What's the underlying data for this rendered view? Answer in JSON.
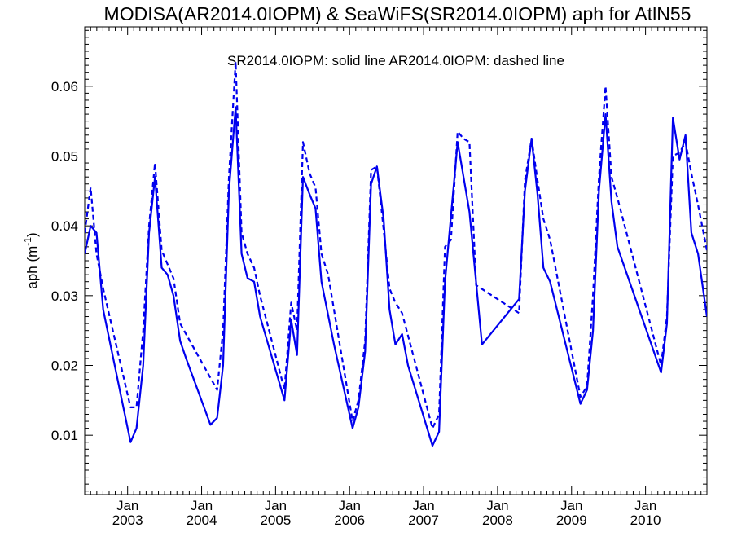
{
  "chart_data": {
    "type": "line",
    "title": "MODISA(AR2014.0IOPM) & SeaWiFS(SR2014.0IOPM)  aph for AtlN55",
    "annotation": "SR2014.0IOPM: solid line   AR2014.0IOPM: dashed line",
    "xlabel": "",
    "ylabel_prefix": "aph (m",
    "ylabel_superscript": "-1",
    "ylabel_suffix": ")",
    "xlim": [
      2002.42,
      2010.83
    ],
    "ylim": [
      0.0015,
      0.0685
    ],
    "grid": false,
    "line_color": "#0000ee",
    "y_ticks": [
      {
        "value": 0.01,
        "label": "0.01"
      },
      {
        "value": 0.02,
        "label": "0.02"
      },
      {
        "value": 0.03,
        "label": "0.03"
      },
      {
        "value": 0.04,
        "label": "0.04"
      },
      {
        "value": 0.05,
        "label": "0.05"
      },
      {
        "value": 0.06,
        "label": "0.06"
      }
    ],
    "x_ticks": [
      {
        "value": 2003,
        "month": "Jan",
        "year": "2003"
      },
      {
        "value": 2004,
        "month": "Jan",
        "year": "2004"
      },
      {
        "value": 2005,
        "month": "Jan",
        "year": "2005"
      },
      {
        "value": 2006,
        "month": "Jan",
        "year": "2006"
      },
      {
        "value": 2007,
        "month": "Jan",
        "year": "2007"
      },
      {
        "value": 2008,
        "month": "Jan",
        "year": "2008"
      },
      {
        "value": 2009,
        "month": "Jan",
        "year": "2009"
      },
      {
        "value": 2010,
        "month": "Jan",
        "year": "2010"
      }
    ],
    "series": [
      {
        "name": "SR2014.0IOPM",
        "style": "solid",
        "x": [
          2002.42,
          2002.5,
          2002.58,
          2002.67,
          2003.04,
          2003.12,
          2003.21,
          2003.29,
          2003.37,
          2003.46,
          2003.54,
          2003.62,
          2003.71,
          2003.79,
          2004.12,
          2004.21,
          2004.29,
          2004.37,
          2004.46,
          2004.54,
          2004.62,
          2004.71,
          2004.79,
          2005.12,
          2005.21,
          2005.29,
          2005.37,
          2005.46,
          2005.54,
          2005.62,
          2005.79,
          2006.04,
          2006.12,
          2006.21,
          2006.29,
          2006.37,
          2006.46,
          2006.54,
          2006.62,
          2006.71,
          2006.79,
          2007.12,
          2007.21,
          2007.29,
          2007.46,
          2007.62,
          2007.79,
          2008.29,
          2008.37,
          2008.46,
          2008.54,
          2008.62,
          2008.71,
          2009.12,
          2009.21,
          2009.29,
          2009.37,
          2009.46,
          2009.54,
          2009.62,
          2010.21,
          2010.29,
          2010.37,
          2010.46,
          2010.54,
          2010.62,
          2010.71,
          2010.83
        ],
        "y": [
          0.036,
          0.04,
          0.039,
          0.028,
          0.009,
          0.011,
          0.02,
          0.039,
          0.047,
          0.034,
          0.033,
          0.03,
          0.0235,
          0.021,
          0.0115,
          0.0125,
          0.02,
          0.045,
          0.057,
          0.036,
          0.0325,
          0.032,
          0.027,
          0.015,
          0.0265,
          0.0215,
          0.047,
          0.0445,
          0.0425,
          0.032,
          0.023,
          0.011,
          0.014,
          0.022,
          0.046,
          0.0485,
          0.041,
          0.028,
          0.023,
          0.0245,
          0.02,
          0.0085,
          0.0105,
          0.032,
          0.052,
          0.042,
          0.023,
          0.0295,
          0.045,
          0.0525,
          0.0445,
          0.034,
          0.032,
          0.0145,
          0.0165,
          0.025,
          0.045,
          0.056,
          0.0435,
          0.037,
          0.019,
          0.026,
          0.0555,
          0.0495,
          0.053,
          0.039,
          0.036,
          0.027
        ]
      },
      {
        "name": "AR2014.0IOPM",
        "style": "dashed",
        "x": [
          2002.42,
          2002.5,
          2002.58,
          2002.67,
          2003.04,
          2003.12,
          2003.21,
          2003.29,
          2003.37,
          2003.46,
          2003.54,
          2003.62,
          2003.71,
          2004.21,
          2004.29,
          2004.37,
          2004.46,
          2004.54,
          2004.62,
          2004.71,
          2004.79,
          2005.12,
          2005.21,
          2005.29,
          2005.37,
          2005.46,
          2005.54,
          2005.62,
          2005.71,
          2006.04,
          2006.12,
          2006.21,
          2006.29,
          2006.37,
          2006.46,
          2006.54,
          2006.62,
          2006.71,
          2007.12,
          2007.21,
          2007.29,
          2007.37,
          2007.46,
          2007.54,
          2007.62,
          2007.71,
          2008.29,
          2008.37,
          2008.46,
          2008.54,
          2008.62,
          2008.71,
          2009.12,
          2009.21,
          2009.29,
          2009.37,
          2009.46,
          2009.54,
          2009.62,
          2010.21,
          2010.29,
          2010.37,
          2010.46,
          2010.54,
          2010.62,
          2010.71,
          2010.83
        ],
        "y": [
          0.039,
          0.0455,
          0.036,
          0.031,
          0.014,
          0.014,
          0.025,
          0.04,
          0.049,
          0.0365,
          0.0345,
          0.0325,
          0.026,
          0.0165,
          0.025,
          0.047,
          0.0635,
          0.039,
          0.036,
          0.034,
          0.03,
          0.0165,
          0.029,
          0.025,
          0.052,
          0.0475,
          0.0455,
          0.036,
          0.033,
          0.012,
          0.015,
          0.0235,
          0.048,
          0.0485,
          0.0395,
          0.031,
          0.029,
          0.0275,
          0.011,
          0.013,
          0.037,
          0.038,
          0.0535,
          0.0525,
          0.052,
          0.0315,
          0.0275,
          0.0465,
          0.0525,
          0.0465,
          0.041,
          0.038,
          0.0155,
          0.017,
          0.03,
          0.047,
          0.06,
          0.047,
          0.044,
          0.02,
          0.027,
          0.05,
          0.0505,
          0.052,
          0.0475,
          0.043,
          0.0365
        ]
      }
    ]
  }
}
